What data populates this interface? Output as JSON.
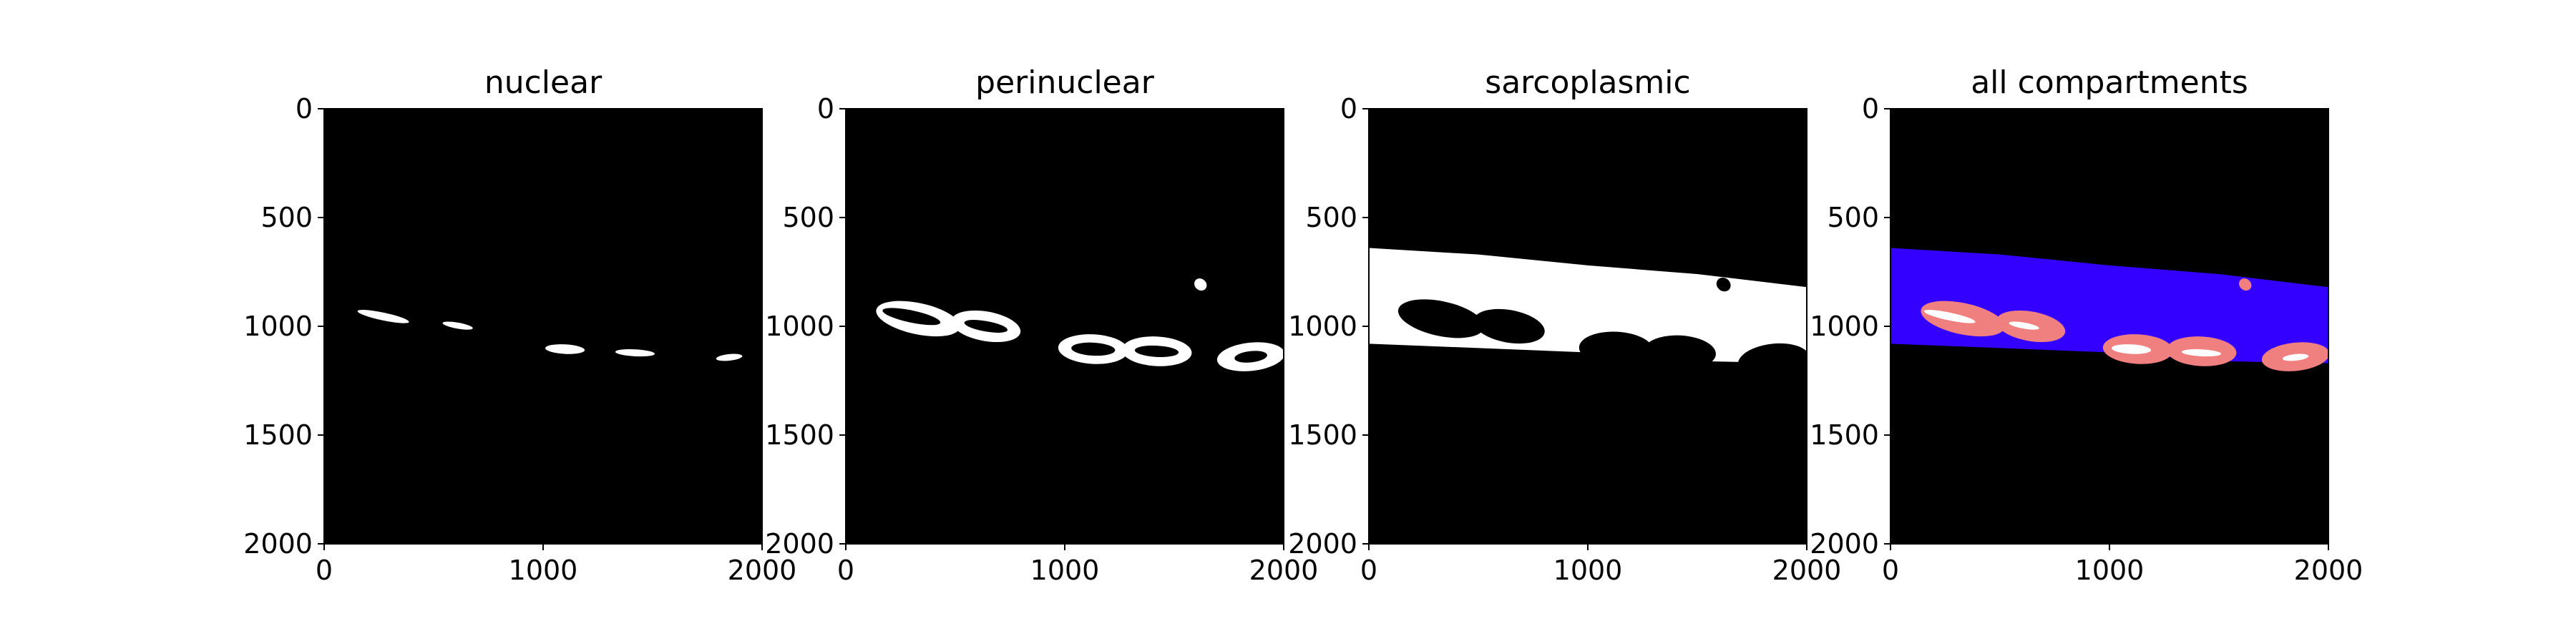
{
  "figure": {
    "panels": [
      {
        "title": "nuclear",
        "xticks": [
          "0",
          "1000",
          "2000"
        ],
        "yticks": [
          "0",
          "500",
          "1000",
          "1500",
          "2000"
        ],
        "layers": [
          {
            "color": "#ffffff",
            "blobs": [
              {
                "cx": 270,
                "cy": 955,
                "rx": 120,
                "ry": 18,
                "rot": 12
              },
              {
                "cx": 610,
                "cy": 997,
                "rx": 70,
                "ry": 14,
                "rot": 10
              },
              {
                "cx": 1100,
                "cy": 1105,
                "rx": 90,
                "ry": 22,
                "rot": 3
              },
              {
                "cx": 1420,
                "cy": 1122,
                "rx": 90,
                "ry": 16,
                "rot": 3
              },
              {
                "cx": 1850,
                "cy": 1143,
                "rx": 60,
                "ry": 15,
                "rot": -6
              }
            ]
          }
        ]
      },
      {
        "title": "perinuclear",
        "xticks": [
          "0",
          "1000",
          "2000"
        ],
        "yticks": [
          "0",
          "500",
          "1000",
          "1500",
          "2000"
        ],
        "layers": [
          {
            "color": "#ffffff",
            "blobs": [
              {
                "cx": 330,
                "cy": 965,
                "rx": 195,
                "ry": 72,
                "rot": 12
              },
              {
                "cx": 640,
                "cy": 1000,
                "rx": 160,
                "ry": 68,
                "rot": 10
              },
              {
                "cx": 1130,
                "cy": 1105,
                "rx": 160,
                "ry": 68,
                "rot": 3
              },
              {
                "cx": 1420,
                "cy": 1115,
                "rx": 160,
                "ry": 68,
                "rot": 3
              },
              {
                "cx": 1850,
                "cy": 1140,
                "rx": 155,
                "ry": 65,
                "rot": -6
              },
              {
                "cx": 1620,
                "cy": 808,
                "rx": 30,
                "ry": 26,
                "rot": 40
              }
            ]
          },
          {
            "color": "#000000",
            "blobs": [
              {
                "cx": 300,
                "cy": 955,
                "rx": 135,
                "ry": 28,
                "rot": 12
              },
              {
                "cx": 640,
                "cy": 1000,
                "rx": 100,
                "ry": 24,
                "rot": 10
              },
              {
                "cx": 1130,
                "cy": 1105,
                "rx": 100,
                "ry": 30,
                "rot": 3
              },
              {
                "cx": 1420,
                "cy": 1115,
                "rx": 100,
                "ry": 26,
                "rot": 3
              },
              {
                "cx": 1850,
                "cy": 1140,
                "rx": 75,
                "ry": 26,
                "rot": -6
              }
            ]
          }
        ]
      },
      {
        "title": "sarcoplasmic",
        "xticks": [
          "0",
          "1000",
          "2000"
        ],
        "yticks": [
          "0",
          "500",
          "1000",
          "1500",
          "2000"
        ],
        "layers": [
          {
            "color": "#ffffff",
            "band": [
              [
                0,
                640
              ],
              [
                500,
                670
              ],
              [
                1000,
                720
              ],
              [
                1500,
                760
              ],
              [
                2000,
                820
              ],
              [
                2000,
                1170
              ],
              [
                1500,
                1160
              ],
              [
                1000,
                1120
              ],
              [
                500,
                1100
              ],
              [
                0,
                1080
              ]
            ]
          },
          {
            "color": "#000000",
            "blobs": [
              {
                "cx": 330,
                "cy": 965,
                "rx": 200,
                "ry": 80,
                "rot": 12
              },
              {
                "cx": 640,
                "cy": 1000,
                "rx": 165,
                "ry": 75,
                "rot": 10
              },
              {
                "cx": 1130,
                "cy": 1105,
                "rx": 170,
                "ry": 80,
                "rot": 3
              },
              {
                "cx": 1420,
                "cy": 1120,
                "rx": 165,
                "ry": 78,
                "rot": 3
              },
              {
                "cx": 1850,
                "cy": 1160,
                "rx": 165,
                "ry": 80,
                "rot": -6
              },
              {
                "cx": 1620,
                "cy": 808,
                "rx": 34,
                "ry": 30,
                "rot": 40
              }
            ]
          }
        ]
      },
      {
        "title": "all compartments",
        "xticks": [
          "0",
          "1000",
          "2000"
        ],
        "yticks": [
          "0",
          "500",
          "1000",
          "1500",
          "2000"
        ],
        "layers": [
          {
            "color": "#3300ff",
            "band": [
              [
                0,
                640
              ],
              [
                500,
                670
              ],
              [
                1000,
                720
              ],
              [
                1500,
                760
              ],
              [
                2000,
                820
              ],
              [
                2000,
                1170
              ],
              [
                1500,
                1160
              ],
              [
                1000,
                1120
              ],
              [
                500,
                1100
              ],
              [
                0,
                1080
              ]
            ]
          },
          {
            "color": "#000000",
            "blobs": [
              {
                "cx": 1130,
                "cy": 1180,
                "rx": 170,
                "ry": 40,
                "rot": 3
              },
              {
                "cx": 1430,
                "cy": 1185,
                "rx": 160,
                "ry": 38,
                "rot": 3
              },
              {
                "cx": 1850,
                "cy": 1205,
                "rx": 160,
                "ry": 40,
                "rot": -6
              }
            ]
          },
          {
            "color": "#f08080",
            "blobs": [
              {
                "cx": 330,
                "cy": 965,
                "rx": 195,
                "ry": 72,
                "rot": 12
              },
              {
                "cx": 640,
                "cy": 1000,
                "rx": 160,
                "ry": 68,
                "rot": 10
              },
              {
                "cx": 1130,
                "cy": 1105,
                "rx": 160,
                "ry": 68,
                "rot": 3
              },
              {
                "cx": 1420,
                "cy": 1115,
                "rx": 160,
                "ry": 68,
                "rot": 3
              },
              {
                "cx": 1850,
                "cy": 1140,
                "rx": 155,
                "ry": 65,
                "rot": -6
              },
              {
                "cx": 1620,
                "cy": 808,
                "rx": 30,
                "ry": 26,
                "rot": 40
              }
            ]
          },
          {
            "color": "#ffffff",
            "blobs": [
              {
                "cx": 270,
                "cy": 955,
                "rx": 120,
                "ry": 18,
                "rot": 12
              },
              {
                "cx": 610,
                "cy": 997,
                "rx": 70,
                "ry": 14,
                "rot": 10
              },
              {
                "cx": 1100,
                "cy": 1105,
                "rx": 90,
                "ry": 22,
                "rot": 3
              },
              {
                "cx": 1420,
                "cy": 1122,
                "rx": 90,
                "ry": 16,
                "rot": 3
              },
              {
                "cx": 1850,
                "cy": 1143,
                "rx": 60,
                "ry": 15,
                "rot": -6
              }
            ]
          }
        ]
      }
    ]
  }
}
